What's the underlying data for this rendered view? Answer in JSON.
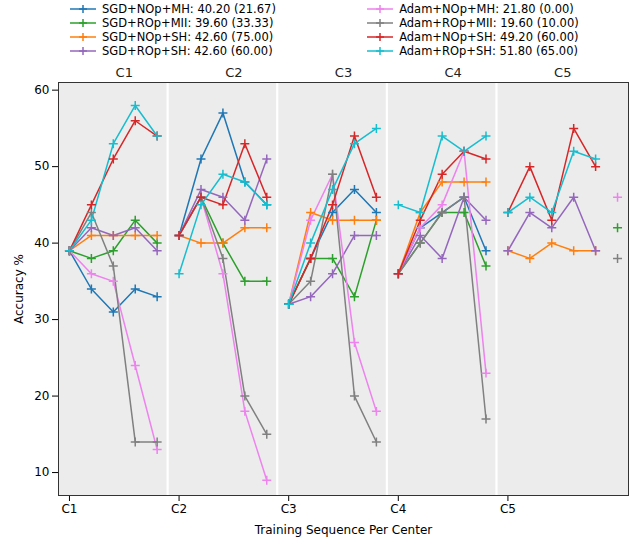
{
  "chart_data": {
    "type": "line",
    "x_label": "Training Sequence Per Center",
    "y_label": "Accuracy %",
    "x": [
      0,
      1,
      2,
      3,
      4,
      5,
      6,
      7,
      8,
      9,
      10,
      11,
      12,
      13,
      14,
      15,
      16,
      17,
      18,
      19,
      20,
      21,
      22,
      23,
      24,
      25
    ],
    "xlim": [
      -0.5,
      25.5
    ],
    "xticks": [
      {
        "value": 0,
        "label": "C1"
      },
      {
        "value": 5,
        "label": "C2"
      },
      {
        "value": 10,
        "label": "C3"
      },
      {
        "value": 15,
        "label": "C4"
      },
      {
        "value": 20,
        "label": "C5"
      }
    ],
    "ylim": [
      7,
      61
    ],
    "yticks": [
      10,
      20,
      30,
      40,
      50,
      60
    ],
    "grid": false,
    "marker": "plus",
    "annotations": [
      {
        "text": "C1",
        "x": 2.5
      },
      {
        "text": "C2",
        "x": 7.5
      },
      {
        "text": "C3",
        "x": 12.5
      },
      {
        "text": "C4",
        "x": 17.5
      },
      {
        "text": "C5",
        "x": 22.5
      }
    ],
    "series": [
      {
        "name": "SGD+NOp+MH: 40.20 (21.67)",
        "color": "#1f77b4",
        "values": [
          39,
          34,
          31,
          34,
          33,
          41,
          51,
          57,
          48,
          45,
          32,
          38,
          44,
          47,
          44,
          36,
          42,
          44,
          46,
          39,
          null,
          null,
          null,
          null,
          null,
          null
        ]
      },
      {
        "name": "SGD+ROp+MII: 39.60 (33.33)",
        "color": "#2ca02c",
        "values": [
          39,
          38,
          39,
          43,
          40,
          41,
          46,
          40,
          35,
          35,
          32,
          38,
          38,
          33,
          43,
          36,
          40,
          44,
          44,
          37,
          null,
          null,
          null,
          null,
          null,
          42
        ]
      },
      {
        "name": "SGD+NOp+SH: 42.60 (75.00)",
        "color": "#ff7f0e",
        "values": [
          39,
          41,
          41,
          41,
          41,
          41,
          40,
          40,
          42,
          42,
          32,
          44,
          43,
          43,
          43,
          36,
          44,
          48,
          48,
          48,
          39,
          38,
          40,
          39,
          39,
          null
        ]
      },
      {
        "name": "SGD+ROp+SH: 42.60 (60.00)",
        "color": "#9467bd",
        "values": [
          39,
          42,
          41,
          42,
          39,
          41,
          47,
          46,
          43,
          51,
          32,
          33,
          36,
          41,
          41,
          36,
          41,
          38,
          46,
          43,
          39,
          44,
          42,
          46,
          39,
          null
        ]
      },
      {
        "name": "Adam+NOp+MH: 21.80 (0.00)",
        "color": "#ee82ee",
        "values": [
          39,
          36,
          35,
          24,
          13,
          41,
          46,
          36,
          18,
          9,
          32,
          43,
          49,
          27,
          18,
          36,
          42,
          45,
          52,
          23,
          null,
          null,
          null,
          null,
          null,
          46
        ]
      },
      {
        "name": "Adam+ROp+MII: 19.60 (10.00)",
        "color": "#808080",
        "values": [
          39,
          44,
          37,
          14,
          14,
          41,
          46,
          38,
          20,
          15,
          32,
          35,
          49,
          20,
          14,
          36,
          40,
          44,
          46,
          17,
          null,
          null,
          null,
          null,
          null,
          38
        ]
      },
      {
        "name": "Adam+NOp+SH: 49.20 (60.00)",
        "color": "#d62728",
        "values": [
          39,
          45,
          51,
          56,
          54,
          41,
          46,
          45,
          53,
          46,
          32,
          38,
          45,
          54,
          46,
          36,
          43,
          49,
          52,
          51,
          44,
          50,
          43,
          55,
          50,
          null
        ]
      },
      {
        "name": "Adam+ROp+SH: 51.80 (65.00)",
        "color": "#17becf",
        "values": [
          39,
          43,
          53,
          58,
          54,
          36,
          45,
          49,
          48,
          45,
          32,
          40,
          47,
          53,
          55,
          45,
          44,
          54,
          52,
          54,
          44,
          46,
          44,
          52,
          51,
          null
        ]
      }
    ]
  }
}
